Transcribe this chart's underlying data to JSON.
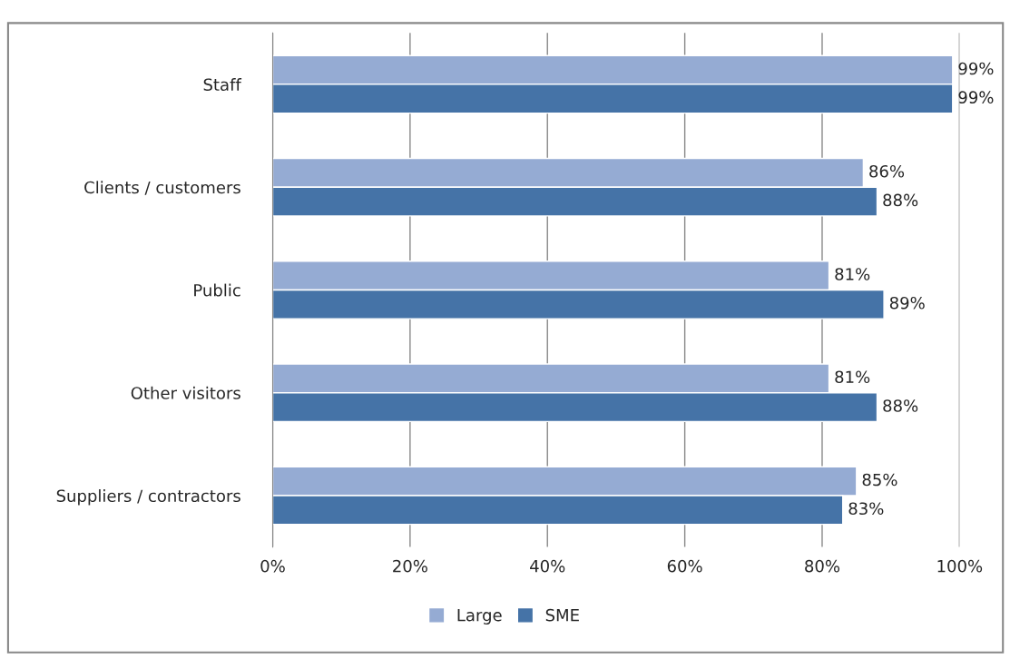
{
  "chart_data": {
    "type": "bar",
    "orientation": "horizontal",
    "categories": [
      "Staff",
      "Clients / customers",
      "Public",
      "Other visitors",
      "Suppliers / contractors"
    ],
    "series": [
      {
        "name": "Large",
        "color": "#95abd3",
        "values": [
          99,
          86,
          81,
          81,
          85
        ],
        "value_labels": [
          "99%",
          "86%",
          "81%",
          "81%",
          "85%"
        ]
      },
      {
        "name": "SME",
        "color": "#4573a7",
        "values": [
          99,
          88,
          89,
          88,
          83
        ],
        "value_labels": [
          "99%",
          "88%",
          "89%",
          "88%",
          "83%"
        ]
      }
    ],
    "xlim": [
      0,
      100
    ],
    "xticks": [
      {
        "value": 0,
        "label": "0%"
      },
      {
        "value": 20,
        "label": "20%"
      },
      {
        "value": 40,
        "label": "40%"
      },
      {
        "value": 60,
        "label": "60%"
      },
      {
        "value": 80,
        "label": "80%"
      },
      {
        "value": 100,
        "label": "100%"
      }
    ],
    "grid": "x",
    "legend": "bottom"
  }
}
